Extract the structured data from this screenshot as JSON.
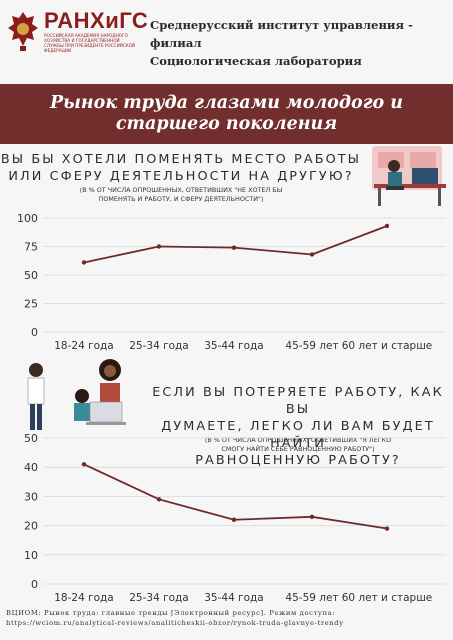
{
  "header": {
    "logo_text": "РАНХиГС",
    "logo_subtext": "РОССИЙСКАЯ АКАДЕМИЯ НАРОДНОГО ХОЗЯЙСТВА И ГОСУДАРСТВЕННОЙ СЛУЖБЫ ПРИ ПРЕЗИДЕНТЕ РОССИЙСКОЙ ФЕДЕРАЦИИ",
    "org_line1": "Среднерусский институт управления - филиал",
    "org_line2": "Социологическая лаборатория"
  },
  "title": {
    "line1": "Рынок труда глазами молодого и",
    "line2": "старшего поколения"
  },
  "q1": {
    "line1": "ВЫ БЫ ХОТЕЛИ ПОМЕНЯТЬ МЕСТО РАБОТЫ",
    "line2": "ИЛИ СФЕРУ ДЕЯТЕЛЬНОСТИ НА ДРУГУЮ?",
    "note1": "(В % ОТ ЧИСЛА ОПРОШЕННЫХ, ОТВЕТИВШИХ \"НЕ ХОТЕЛ БЫ",
    "note2": "ПОМЕНЯТЬ И РАБОТУ, И СФЕРУ ДЕЯТЕЛЬНОСТИ\")"
  },
  "q2": {
    "line1": "ЕСЛИ ВЫ ПОТЕРЯЕТЕ РАБОТУ, КАК ВЫ",
    "line2": "ДУМАЕТЕ, ЛЕГКО ЛИ ВАМ БУДЕТ НАЙТИ",
    "line3": "РАВНОЦЕННУЮ РАБОТУ?",
    "note1": "(В % ОТ ЧИСЛА ОПРОШЕННЫХ, ОТВЕТИВШИХ \"Я ЛЕГКО",
    "note2": "СМОГУ НАЙТИ СЕБЕ РАВНОЦЕННУЮ РАБОТУ\")"
  },
  "footer": {
    "line1": "ВЦИОМ: Рынок труда: главные тренды [Электронный ресурс]. Режим доступа:",
    "line2": "https://wciom.ru/analytical-reviews/analiticheskii-obzor/rynok-truda-glavnye-trendy"
  },
  "colors": {
    "accent": "#722d2d",
    "line": "#6e2a2a",
    "grid": "#d9d9d9",
    "axis_text": "#333333"
  },
  "chart_data": [
    {
      "type": "line",
      "categories": [
        "18-24 года",
        "25-34 года",
        "35-44 года",
        "45-59 лет",
        "60 лет и старше"
      ],
      "values": [
        61,
        75,
        74,
        68,
        93
      ],
      "ylim": [
        0,
        100
      ],
      "yticks": [
        0,
        25,
        50,
        75,
        100
      ],
      "grid": true
    },
    {
      "type": "line",
      "categories": [
        "18-24 года",
        "25-34 года",
        "35-44 года",
        "45-59 лет",
        "60 лет и старше"
      ],
      "values": [
        41,
        29,
        22,
        23,
        19
      ],
      "ylim": [
        0,
        50
      ],
      "yticks": [
        0,
        10,
        20,
        30,
        40,
        50
      ],
      "grid": true
    }
  ]
}
